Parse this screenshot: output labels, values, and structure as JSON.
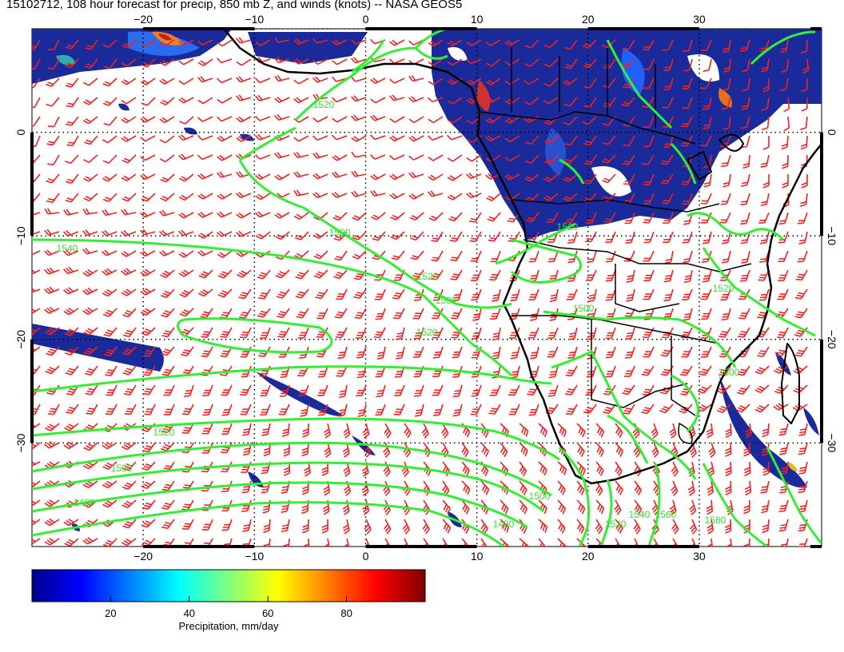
{
  "title": "15102712, 108 hour forecast for precip, 850 mb Z, and winds (knots) -- NASA GEOS5",
  "map": {
    "lon_range": [
      -30,
      41
    ],
    "lat_range": [
      -40,
      10
    ],
    "lon_ticks": [
      -20,
      -10,
      0,
      10,
      20,
      30
    ],
    "lat_ticks": [
      0,
      -10,
      -20,
      -30
    ],
    "lon_tick_labels": [
      "−20",
      "−10",
      "0",
      "10",
      "20",
      "30"
    ],
    "lat_tick_labels": [
      "0",
      "−10",
      "−20",
      "−30"
    ],
    "gridlines": "dotted",
    "colors": {
      "wind_barbs": "#ee2222",
      "height_contours": "#33ee33",
      "coastlines": "#000000",
      "precip_background": "#1a2a9a"
    }
  },
  "contours": {
    "variable": "850 mb geopotential height",
    "labels": [
      "1520",
      "1500",
      "1520",
      "1500",
      "1520",
      "1540",
      "1500",
      "1520",
      "1520",
      "1520",
      "1500",
      "1480",
      "1480",
      "1500",
      "1520",
      "1540",
      "1560",
      "1580",
      "1600"
    ]
  },
  "colorbar": {
    "ticks": [
      20,
      40,
      60,
      80
    ],
    "range": [
      0,
      100
    ],
    "label": "Precipitation, mm/day",
    "stops": [
      "#00008f",
      "#0000ff",
      "#0080ff",
      "#00ffff",
      "#80ff80",
      "#ffff00",
      "#ff8000",
      "#ff0000",
      "#800000"
    ]
  }
}
